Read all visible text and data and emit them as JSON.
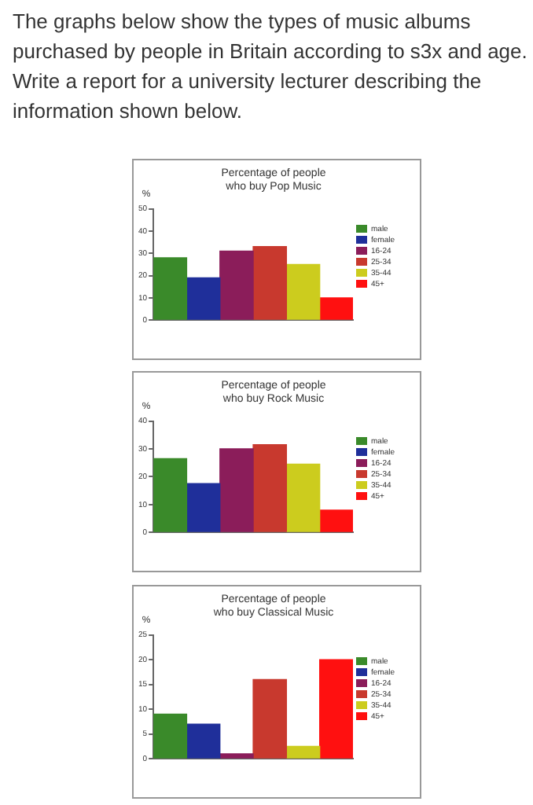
{
  "chart_data": [
    {
      "type": "bar",
      "title": "Percentage of people\nwho buy Pop Music",
      "ylabel": "%",
      "annotations": [
        "The graphs below show the types of music albums purchased by people in Britain according to s3x and age. Write a report for a university lecturer describing the information shown below."
      ],
      "categories": [
        null
      ],
      "ylim": [
        0,
        50
      ],
      "yticks": [
        0,
        10,
        20,
        30,
        40,
        50
      ],
      "grid": false,
      "legend": "right",
      "series": [
        {
          "name": "male",
          "color": "#3a8a2a",
          "values": [
            28
          ]
        },
        {
          "name": "female",
          "color": "#1f2f9a",
          "values": [
            19
          ]
        },
        {
          "name": "16-24",
          "color": "#8b1d5a",
          "values": [
            31
          ]
        },
        {
          "name": "25-34",
          "color": "#c8392e",
          "values": [
            33
          ]
        },
        {
          "name": "35-44",
          "color": "#cccc1e",
          "values": [
            25
          ]
        },
        {
          "name": "45+",
          "color": "#ff1010",
          "values": [
            10
          ]
        }
      ]
    },
    {
      "type": "bar",
      "title": "Percentage of people\nwho buy Rock Music",
      "ylabel": "%",
      "categories": [
        null
      ],
      "ylim": [
        0,
        40
      ],
      "yticks": [
        0,
        10,
        20,
        30,
        40
      ],
      "grid": false,
      "legend": "right",
      "series": [
        {
          "name": "male",
          "color": "#3a8a2a",
          "values": [
            26.5
          ]
        },
        {
          "name": "female",
          "color": "#1f2f9a",
          "values": [
            17.5
          ]
        },
        {
          "name": "16-24",
          "color": "#8b1d5a",
          "values": [
            30
          ]
        },
        {
          "name": "25-34",
          "color": "#c8392e",
          "values": [
            31.5
          ]
        },
        {
          "name": "35-44",
          "color": "#cccc1e",
          "values": [
            24.5
          ]
        },
        {
          "name": "45+",
          "color": "#ff1010",
          "values": [
            8
          ]
        }
      ]
    },
    {
      "type": "bar",
      "title": "Percentage of people\nwho buy Classical Music",
      "ylabel": "%",
      "categories": [
        null
      ],
      "ylim": [
        0,
        25
      ],
      "yticks": [
        0,
        5,
        10,
        15,
        20,
        25
      ],
      "grid": false,
      "legend": "right",
      "series": [
        {
          "name": "male",
          "color": "#3a8a2a",
          "values": [
            9
          ]
        },
        {
          "name": "female",
          "color": "#1f2f9a",
          "values": [
            7
          ]
        },
        {
          "name": "16-24",
          "color": "#8b1d5a",
          "values": [
            1
          ]
        },
        {
          "name": "25-34",
          "color": "#c8392e",
          "values": [
            16
          ]
        },
        {
          "name": "35-44",
          "color": "#cccc1e",
          "values": [
            2.5
          ]
        },
        {
          "name": "45+",
          "color": "#ff1010",
          "values": [
            20
          ]
        }
      ]
    }
  ]
}
